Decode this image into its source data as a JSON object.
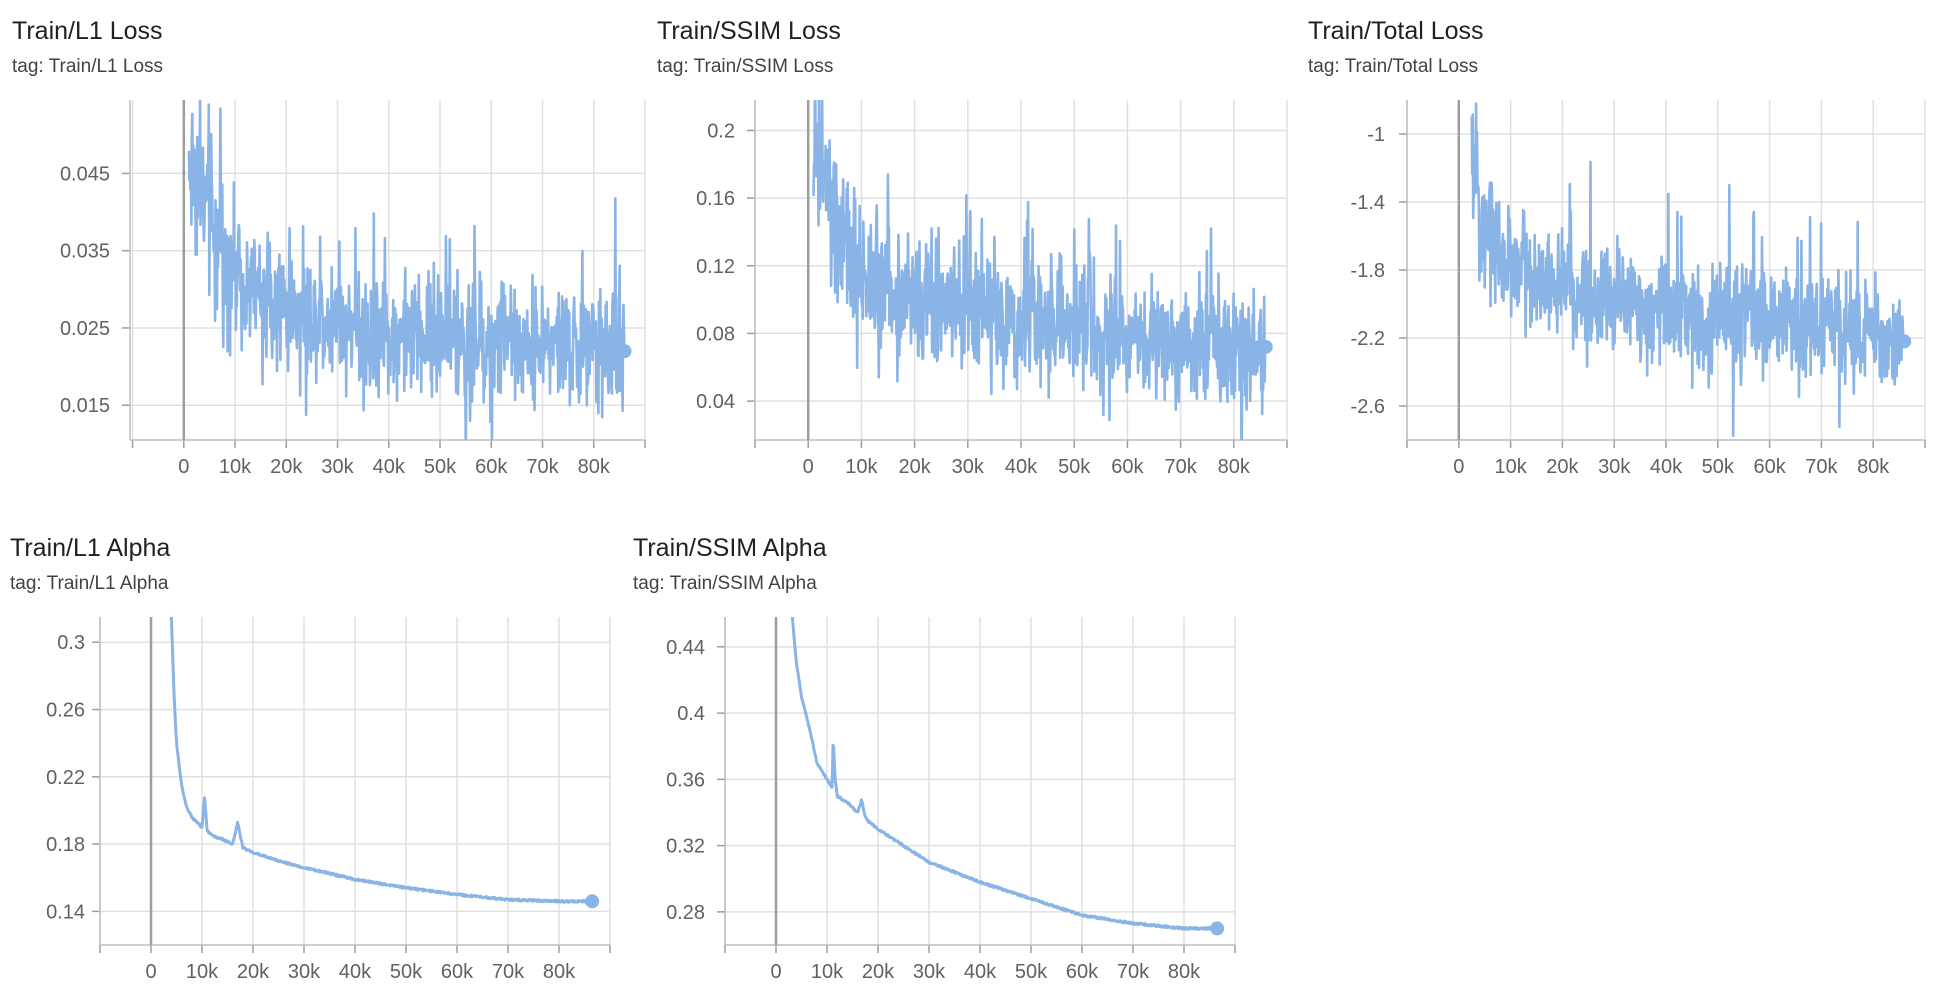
{
  "chart_data": [
    {
      "type": "line",
      "title": "Train/L1 Loss",
      "subtitle": "tag: Train/L1 Loss",
      "xlabel": "",
      "ylabel": "",
      "xlim": [
        -10500,
        90000
      ],
      "ylim": [
        0.0105,
        0.0545
      ],
      "xticks": [
        0,
        10000,
        20000,
        30000,
        40000,
        50000,
        60000,
        70000,
        80000
      ],
      "xtick_labels": [
        "0",
        "10k",
        "20k",
        "30k",
        "40k",
        "50k",
        "60k",
        "70k",
        "80k"
      ],
      "yticks": [
        0.015,
        0.025,
        0.035,
        0.045
      ],
      "ytick_labels": [
        "0.015",
        "0.025",
        "0.035",
        "0.045"
      ],
      "grid": true,
      "color": "#89b4e5",
      "noisy": true,
      "series": [
        {
          "x": [
            1000,
            3000,
            5000,
            8000,
            12000,
            16000,
            20000,
            25000,
            30000,
            35000,
            40000,
            50000,
            60000,
            70000,
            80000,
            86000
          ],
          "y": [
            0.046,
            0.044,
            0.039,
            0.034,
            0.031,
            0.029,
            0.028,
            0.027,
            0.026,
            0.025,
            0.024,
            0.024,
            0.023,
            0.023,
            0.022,
            0.022
          ],
          "noise": [
            0.009,
            0.009,
            0.009,
            0.007,
            0.006,
            0.006,
            0.006,
            0.006,
            0.006,
            0.006,
            0.006,
            0.006,
            0.006,
            0.006,
            0.006,
            0.006
          ]
        }
      ]
    },
    {
      "type": "line",
      "title": "Train/SSIM Loss",
      "subtitle": "tag: Train/SSIM Loss",
      "xlabel": "",
      "ylabel": "",
      "xlim": [
        -10000,
        90000
      ],
      "ylim": [
        0.017,
        0.218
      ],
      "xticks": [
        0,
        10000,
        20000,
        30000,
        40000,
        50000,
        60000,
        70000,
        80000
      ],
      "xtick_labels": [
        "0",
        "10k",
        "20k",
        "30k",
        "40k",
        "50k",
        "60k",
        "70k",
        "80k"
      ],
      "yticks": [
        0.04,
        0.08,
        0.12,
        0.16,
        0.2
      ],
      "ytick_labels": [
        "0.04",
        "0.08",
        "0.12",
        "0.16",
        "0.2"
      ],
      "grid": true,
      "color": "#89b4e5",
      "noisy": true,
      "series": [
        {
          "x": [
            1000,
            3000,
            5000,
            8000,
            12000,
            16000,
            20000,
            25000,
            30000,
            35000,
            40000,
            50000,
            60000,
            70000,
            80000,
            86000
          ],
          "y": [
            0.19,
            0.17,
            0.14,
            0.12,
            0.11,
            0.105,
            0.1,
            0.095,
            0.09,
            0.088,
            0.085,
            0.082,
            0.08,
            0.078,
            0.075,
            0.072
          ],
          "noise": [
            0.04,
            0.04,
            0.04,
            0.035,
            0.03,
            0.03,
            0.028,
            0.028,
            0.028,
            0.028,
            0.028,
            0.028,
            0.028,
            0.028,
            0.028,
            0.028
          ]
        }
      ]
    },
    {
      "type": "line",
      "title": "Train/Total Loss",
      "subtitle": "tag: Train/Total Loss",
      "xlabel": "",
      "ylabel": "",
      "xlim": [
        -10000,
        90000
      ],
      "ylim": [
        -2.8,
        -0.8
      ],
      "xticks": [
        0,
        10000,
        20000,
        30000,
        40000,
        50000,
        60000,
        70000,
        80000
      ],
      "xtick_labels": [
        "0",
        "10k",
        "20k",
        "30k",
        "40k",
        "50k",
        "60k",
        "70k",
        "80k"
      ],
      "yticks": [
        -2.6,
        -2.2,
        -1.8,
        -1.4,
        -1
      ],
      "ytick_labels": [
        "-2.6",
        "-2.2",
        "-1.8",
        "-1.4",
        "-1"
      ],
      "grid": true,
      "color": "#89b4e5",
      "noisy": true,
      "series": [
        {
          "x": [
            2500,
            4000,
            6000,
            9000,
            12000,
            16000,
            20000,
            25000,
            30000,
            35000,
            40000,
            50000,
            60000,
            70000,
            80000,
            86000
          ],
          "y": [
            -1.15,
            -1.4,
            -1.6,
            -1.75,
            -1.8,
            -1.85,
            -1.9,
            -1.95,
            -2.0,
            -2.02,
            -2.05,
            -2.08,
            -2.1,
            -2.12,
            -2.15,
            -2.22
          ],
          "noise": [
            0.3,
            0.3,
            0.3,
            0.28,
            0.25,
            0.25,
            0.25,
            0.25,
            0.25,
            0.25,
            0.25,
            0.25,
            0.25,
            0.25,
            0.25,
            0.25
          ]
        }
      ]
    },
    {
      "type": "line",
      "title": "Train/L1 Alpha",
      "subtitle": "tag: Train/L1 Alpha",
      "xlabel": "",
      "ylabel": "",
      "xlim": [
        -10000,
        90000
      ],
      "ylim": [
        0.12,
        0.315
      ],
      "xticks": [
        0,
        10000,
        20000,
        30000,
        40000,
        50000,
        60000,
        70000,
        80000
      ],
      "xtick_labels": [
        "0",
        "10k",
        "20k",
        "30k",
        "40k",
        "50k",
        "60k",
        "70k",
        "80k"
      ],
      "yticks": [
        0.14,
        0.18,
        0.22,
        0.26,
        0.3
      ],
      "ytick_labels": [
        "0.14",
        "0.18",
        "0.22",
        "0.26",
        "0.3"
      ],
      "grid": true,
      "color": "#89b4e5",
      "noisy": false,
      "series": [
        {
          "x": [
            4000,
            4500,
            5000,
            6000,
            7000,
            8000,
            10000,
            10500,
            11000,
            12000,
            14000,
            16000,
            17000,
            18000,
            20000,
            25000,
            30000,
            40000,
            50000,
            60000,
            70000,
            80000,
            86500
          ],
          "y": [
            0.315,
            0.27,
            0.24,
            0.215,
            0.202,
            0.196,
            0.19,
            0.208,
            0.188,
            0.185,
            0.183,
            0.18,
            0.193,
            0.178,
            0.175,
            0.17,
            0.166,
            0.159,
            0.154,
            0.15,
            0.147,
            0.146,
            0.146
          ]
        }
      ]
    },
    {
      "type": "line",
      "title": "Train/SSIM Alpha",
      "subtitle": "tag: Train/SSIM Alpha",
      "xlabel": "",
      "ylabel": "",
      "xlim": [
        -10000,
        90000
      ],
      "ylim": [
        0.26,
        0.458
      ],
      "xticks": [
        0,
        10000,
        20000,
        30000,
        40000,
        50000,
        60000,
        70000,
        80000
      ],
      "xtick_labels": [
        "0",
        "10k",
        "20k",
        "30k",
        "40k",
        "50k",
        "60k",
        "70k",
        "80k"
      ],
      "yticks": [
        0.28,
        0.32,
        0.36,
        0.4,
        0.44
      ],
      "ytick_labels": [
        "0.28",
        "0.32",
        "0.36",
        "0.4",
        "0.44"
      ],
      "grid": true,
      "color": "#89b4e5",
      "noisy": false,
      "series": [
        {
          "x": [
            3200,
            4000,
            5000,
            6000,
            7000,
            8000,
            9000,
            10000,
            11000,
            11200,
            11600,
            12000,
            14000,
            16000,
            16800,
            17400,
            18000,
            20000,
            25000,
            30000,
            40000,
            50000,
            60000,
            70000,
            80000,
            86500
          ],
          "y": [
            0.458,
            0.43,
            0.41,
            0.398,
            0.385,
            0.37,
            0.365,
            0.36,
            0.355,
            0.385,
            0.36,
            0.35,
            0.346,
            0.34,
            0.348,
            0.338,
            0.335,
            0.33,
            0.32,
            0.31,
            0.298,
            0.288,
            0.278,
            0.273,
            0.27,
            0.27
          ]
        }
      ]
    }
  ]
}
